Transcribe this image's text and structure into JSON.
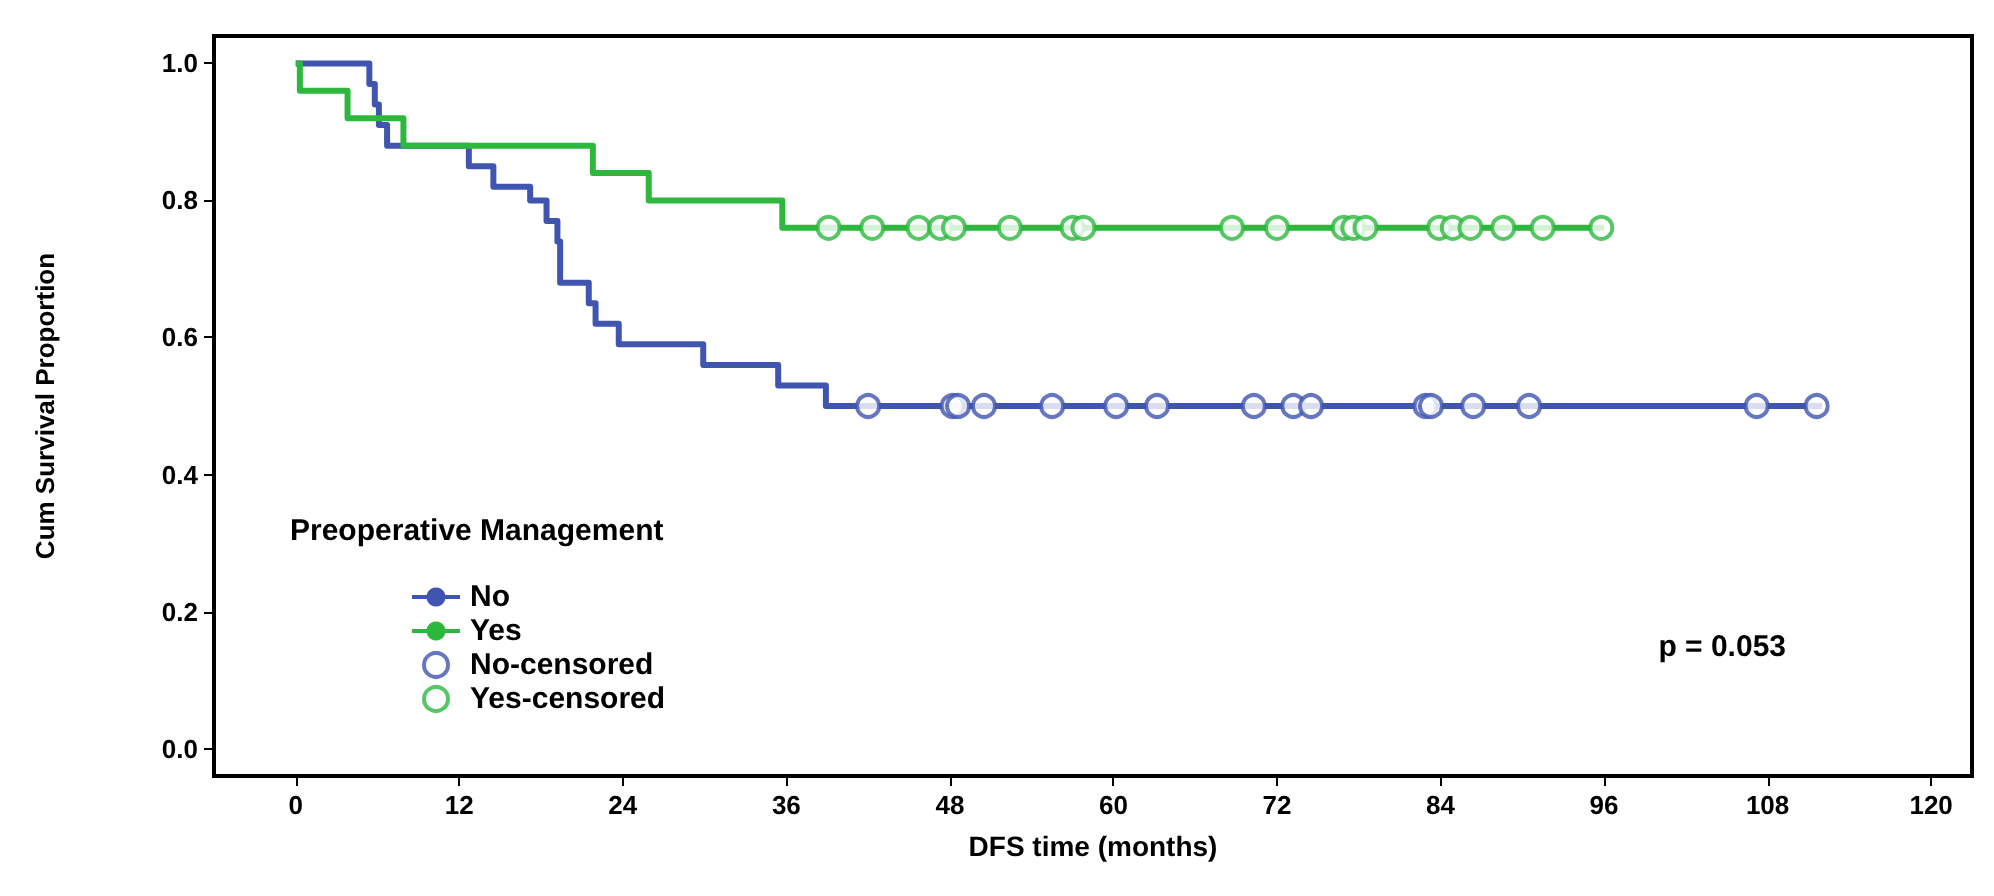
{
  "chart_data": {
    "type": "step",
    "xlabel": "DFS time (months)",
    "ylabel": "Cum Survival Proportion",
    "legend_title": "Preoperative Management",
    "legend": "bottom left",
    "grid": false,
    "xlim": [
      -6,
      123
    ],
    "xticks": [
      0,
      12,
      24,
      36,
      48,
      60,
      72,
      84,
      96,
      108,
      120
    ],
    "ylim": [
      -0.04,
      1.04
    ],
    "yticks": [
      {
        "value": 0,
        "label": "0.0"
      },
      {
        "value": 0.2,
        "label": "0.2"
      },
      {
        "value": 0.4,
        "label": "0.4"
      },
      {
        "value": 0.6,
        "label": "0.6"
      },
      {
        "value": 0.8,
        "label": "0.8"
      },
      {
        "value": 1,
        "label": "1.0"
      }
    ],
    "annotations": [
      "p = 0.053"
    ],
    "series": [
      {
        "name": "No",
        "color": "#4055b0",
        "marker": "none",
        "x": [
          0,
          5.4,
          5.8,
          6.1,
          6.7,
          12.7,
          14.5,
          17.2,
          18.4,
          19.2,
          19.4,
          21.5,
          22,
          23.7,
          29.9,
          35.4,
          38.9,
          112
        ],
        "values": [
          1,
          0.97,
          0.94,
          0.91,
          0.88,
          0.85,
          0.82,
          0.8,
          0.77,
          0.74,
          0.68,
          0.65,
          0.62,
          0.59,
          0.56,
          0.53,
          0.5,
          0.5
        ]
      },
      {
        "name": "Yes",
        "color": "#2db83d",
        "marker": "none",
        "x": [
          0,
          0.3,
          3.8,
          7.9,
          21.8,
          25.9,
          35.7,
          96
        ],
        "values": [
          1,
          0.96,
          0.92,
          0.88,
          0.84,
          0.8,
          0.76,
          0.76
        ]
      },
      {
        "name": "No-censored",
        "type": "scatter",
        "color": "#4055b0",
        "marker": "circle",
        "x": [
          42,
          48.2,
          48.6,
          50.5,
          55.5,
          60.2,
          63.2,
          70.3,
          73.2,
          74.5,
          82.9,
          83.3,
          86.4,
          90.5,
          107.2,
          111.6
        ],
        "values": [
          0.5,
          0.5,
          0.5,
          0.5,
          0.5,
          0.5,
          0.5,
          0.5,
          0.5,
          0.5,
          0.5,
          0.5,
          0.5,
          0.5,
          0.5,
          0.5
        ]
      },
      {
        "name": "Yes-censored",
        "type": "scatter",
        "color": "#2db83d",
        "marker": "circle",
        "x": [
          39.1,
          42.3,
          45.7,
          47.3,
          48.3,
          52.4,
          57,
          57.8,
          68.7,
          72,
          76.9,
          77.6,
          78.5,
          83.9,
          84.9,
          86.2,
          88.6,
          91.5,
          95.8
        ],
        "values": [
          0.76,
          0.76,
          0.76,
          0.76,
          0.76,
          0.76,
          0.76,
          0.76,
          0.76,
          0.76,
          0.76,
          0.76,
          0.76,
          0.76,
          0.76,
          0.76,
          0.76,
          0.76,
          0.76
        ]
      }
    ]
  }
}
